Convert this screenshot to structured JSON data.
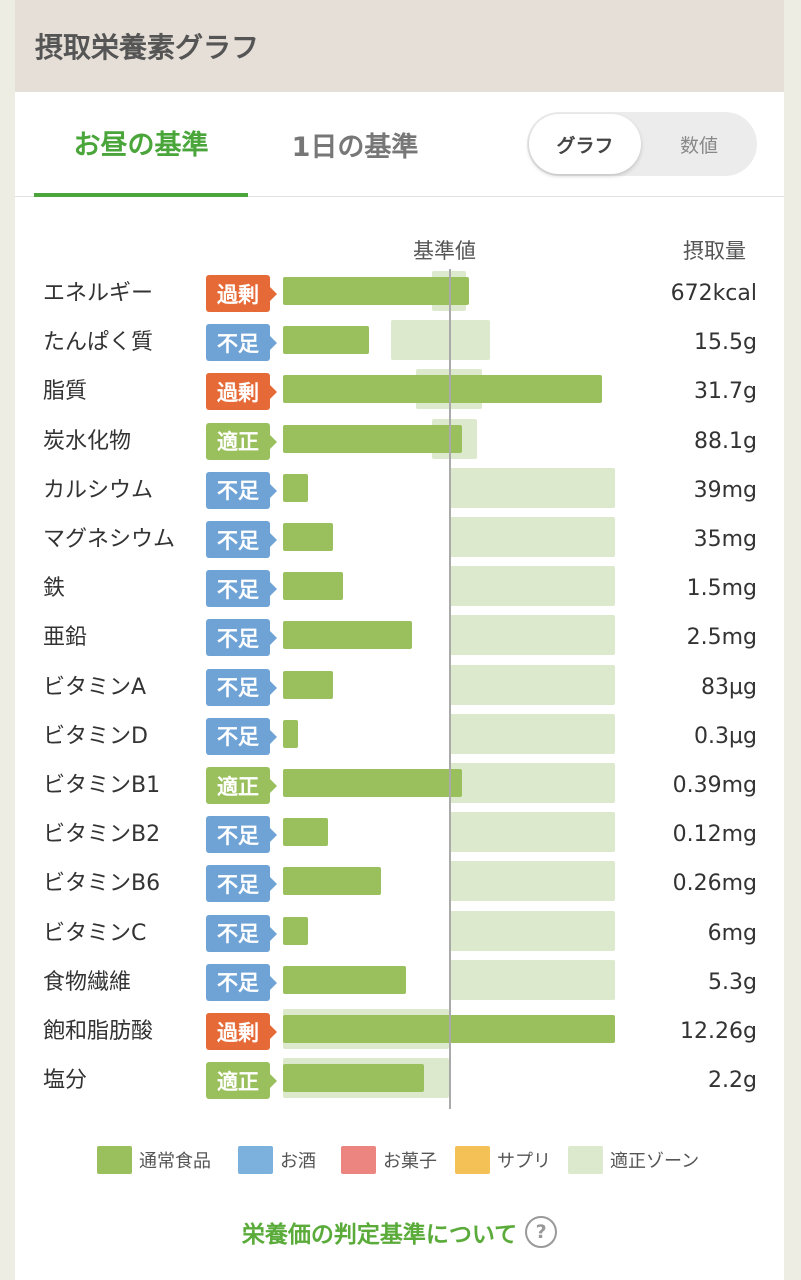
{
  "header": {
    "title": "摂取栄養素グラフ"
  },
  "tabs": [
    {
      "label": "お昼の基準",
      "active": true
    },
    {
      "label": "1日の基準",
      "active": false
    }
  ],
  "view_toggle": {
    "graph_label": "グラフ",
    "value_label": "数値",
    "selected": "グラフ"
  },
  "columns": {
    "reference": "基準値",
    "intake": "摂取量"
  },
  "colors": {
    "excess": "#e56a37",
    "lack": "#6fa3d6",
    "ok": "#9ac05d",
    "normal_food": "#9ac05d",
    "alcohol": "#7db1dd",
    "snacks": "#ec8580",
    "supplement": "#f3c155",
    "proper_zone": "#dde9cd"
  },
  "chart_data": {
    "type": "bar",
    "reference_line": 1.0,
    "scale_max": 2.0,
    "nutrients": [
      {
        "name": "エネルギー",
        "status": "過剰",
        "status_kind": "excess",
        "amount": "672kcal",
        "ratio": 1.12,
        "zone": [
          0.9,
          1.1
        ]
      },
      {
        "name": "たんぱく質",
        "status": "不足",
        "status_kind": "lack",
        "amount": "15.5g",
        "ratio": 0.52,
        "zone": [
          0.65,
          1.25
        ]
      },
      {
        "name": "脂質",
        "status": "過剰",
        "status_kind": "excess",
        "amount": "31.7g",
        "ratio": 1.92,
        "zone": [
          0.8,
          1.2
        ]
      },
      {
        "name": "炭水化物",
        "status": "適正",
        "status_kind": "ok",
        "amount": "88.1g",
        "ratio": 1.08,
        "zone": [
          0.9,
          1.17
        ]
      },
      {
        "name": "カルシウム",
        "status": "不足",
        "status_kind": "lack",
        "amount": "39mg",
        "ratio": 0.15,
        "zone": [
          1.0,
          2.0
        ]
      },
      {
        "name": "マグネシウム",
        "status": "不足",
        "status_kind": "lack",
        "amount": "35mg",
        "ratio": 0.3,
        "zone": [
          1.0,
          2.0
        ]
      },
      {
        "name": "鉄",
        "status": "不足",
        "status_kind": "lack",
        "amount": "1.5mg",
        "ratio": 0.36,
        "zone": [
          1.0,
          2.0
        ]
      },
      {
        "name": "亜鉛",
        "status": "不足",
        "status_kind": "lack",
        "amount": "2.5mg",
        "ratio": 0.78,
        "zone": [
          1.0,
          2.0
        ]
      },
      {
        "name": "ビタミンA",
        "status": "不足",
        "status_kind": "lack",
        "amount": "83µg",
        "ratio": 0.3,
        "zone": [
          1.0,
          2.0
        ]
      },
      {
        "name": "ビタミンD",
        "status": "不足",
        "status_kind": "lack",
        "amount": "0.3µg",
        "ratio": 0.09,
        "zone": [
          1.0,
          2.0
        ]
      },
      {
        "name": "ビタミンB1",
        "status": "適正",
        "status_kind": "ok",
        "amount": "0.39mg",
        "ratio": 1.08,
        "zone": [
          1.0,
          2.0
        ]
      },
      {
        "name": "ビタミンB2",
        "status": "不足",
        "status_kind": "lack",
        "amount": "0.12mg",
        "ratio": 0.27,
        "zone": [
          1.0,
          2.0
        ]
      },
      {
        "name": "ビタミンB6",
        "status": "不足",
        "status_kind": "lack",
        "amount": "0.26mg",
        "ratio": 0.59,
        "zone": [
          1.0,
          2.0
        ]
      },
      {
        "name": "ビタミンC",
        "status": "不足",
        "status_kind": "lack",
        "amount": "6mg",
        "ratio": 0.15,
        "zone": [
          1.0,
          2.0
        ]
      },
      {
        "name": "食物繊維",
        "status": "不足",
        "status_kind": "lack",
        "amount": "5.3g",
        "ratio": 0.74,
        "zone": [
          1.0,
          2.0
        ]
      },
      {
        "name": "飽和脂肪酸",
        "status": "過剰",
        "status_kind": "excess",
        "amount": "12.26g",
        "ratio": 2.0,
        "zone": [
          0.0,
          1.0
        ]
      },
      {
        "name": "塩分",
        "status": "適正",
        "status_kind": "ok",
        "amount": "2.2g",
        "ratio": 0.85,
        "zone": [
          0.0,
          1.0
        ]
      }
    ]
  },
  "legend": [
    {
      "label": "通常食品",
      "color_key": "normal_food"
    },
    {
      "label": "お酒",
      "color_key": "alcohol"
    },
    {
      "label": "お菓子",
      "color_key": "snacks"
    },
    {
      "label": "サプリ",
      "color_key": "supplement"
    },
    {
      "label": "適正ゾーン",
      "color_key": "proper_zone"
    }
  ],
  "footer": {
    "link_label": "栄養価の判定基準について",
    "help_icon": "question-circle-icon",
    "help_glyph": "?"
  }
}
